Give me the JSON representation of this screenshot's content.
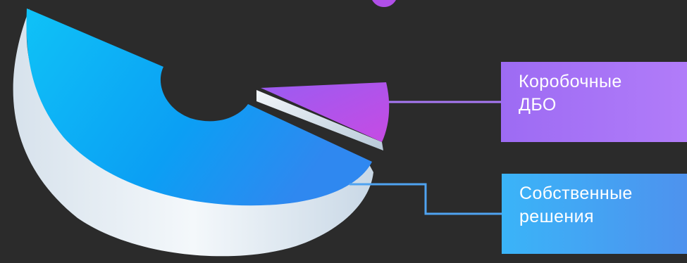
{
  "chart_data": {
    "type": "pie",
    "style": "3d-donut",
    "slices": [
      {
        "label_lines": [
          "Коробочные",
          "ДБО"
        ],
        "value": 8,
        "color": "#b04fe8",
        "exploded": true
      },
      {
        "label_lines": [
          "Собственные",
          "решения"
        ],
        "value": 92,
        "color": "#0ab4f5",
        "exploded": false
      }
    ],
    "colors": {
      "background": "#2b2b2b",
      "connector_purple": "#a878f6",
      "connector_blue": "#4fa3f0",
      "side_face": "#e6eef5"
    }
  }
}
